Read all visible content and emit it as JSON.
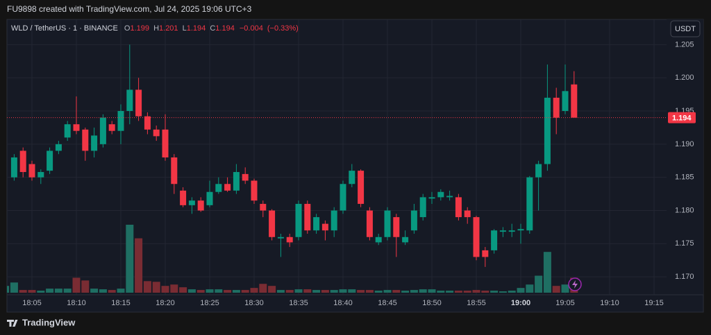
{
  "header": {
    "credit": "FU9898 created with TradingView.com, Jul 24, 2025 19:06 UTC+3",
    "symbol": "WLD / TetherUS · 1 · BINANCE",
    "ohlc_labels": [
      "O",
      "H",
      "L",
      "C"
    ],
    "ohlc_values": [
      1.199,
      1.201,
      1.194,
      1.194
    ],
    "change": -0.004,
    "change_label": "−0.004",
    "change_pct": -0.33,
    "change_pct_label": "(−0.33%)",
    "currency": "USDT"
  },
  "footer": {
    "brand": "TradingView"
  },
  "chart_data": {
    "type": "candlestick",
    "categories": [
      null,
      null,
      null,
      "18:05",
      null,
      null,
      null,
      null,
      "18:10",
      null,
      null,
      null,
      null,
      "18:15",
      null,
      null,
      null,
      null,
      "18:20",
      null,
      null,
      null,
      null,
      "18:25",
      null,
      null,
      null,
      null,
      "18:30",
      null,
      null,
      null,
      null,
      "18:35",
      null,
      null,
      null,
      null,
      "18:40",
      null,
      null,
      null,
      null,
      "18:45",
      null,
      null,
      null,
      null,
      "18:50",
      null,
      null,
      null,
      null,
      "18:55",
      null,
      null,
      null,
      null,
      "19:00",
      null,
      null,
      null,
      null,
      "19:05",
      null,
      null,
      null,
      null,
      "19:10",
      null,
      null,
      null,
      null,
      "19:15"
    ],
    "bold_category": "19:00",
    "open": [
      1.1845,
      1.185,
      1.189,
      1.187,
      1.185,
      1.186,
      1.189,
      1.191,
      1.193,
      1.1922,
      1.189,
      1.19,
      1.193,
      1.192,
      1.195,
      1.1982,
      1.1942,
      1.1922,
      1.1922,
      1.188,
      1.183,
      1.1808,
      1.1815,
      1.1808,
      1.1828,
      1.184,
      1.183,
      1.1855,
      1.1845,
      1.181,
      1.18,
      1.1758,
      1.176,
      1.176,
      1.181,
      1.177,
      1.178,
      1.177,
      1.18,
      1.184,
      1.186,
      1.18,
      1.1752,
      1.176,
      1.179,
      1.1752,
      1.177,
      1.179,
      1.1818,
      1.182,
      1.182,
      1.182,
      1.18,
      1.179,
      1.174,
      1.174,
      1.1768,
      1.1768,
      1.177,
      1.177,
      1.185,
      1.187,
      1.197,
      1.195,
      1.199,
      null,
      null,
      null,
      null,
      null,
      null,
      null,
      null,
      null
    ],
    "high": [
      1.1865,
      1.1885,
      1.1895,
      1.1875,
      1.1862,
      1.1895,
      1.1905,
      1.1935,
      1.1972,
      1.1925,
      1.1925,
      1.1945,
      1.1935,
      1.196,
      1.205,
      1.2,
      1.1948,
      1.1928,
      1.1945,
      1.1885,
      1.1835,
      1.182,
      1.182,
      1.1845,
      1.185,
      1.185,
      1.187,
      1.1865,
      1.1848,
      1.1815,
      1.1802,
      1.1765,
      1.1765,
      1.1815,
      1.1815,
      1.1795,
      1.1785,
      1.1805,
      1.1845,
      1.187,
      1.1862,
      1.1805,
      1.1765,
      1.1805,
      1.1795,
      1.177,
      1.181,
      1.1825,
      1.1828,
      1.1832,
      1.183,
      1.1825,
      1.1805,
      1.1792,
      1.1745,
      1.1772,
      1.1775,
      1.178,
      1.178,
      1.1852,
      1.1875,
      1.202,
      1.1985,
      1.202,
      1.201,
      null,
      null,
      null,
      null,
      null,
      null,
      null,
      null,
      null
    ],
    "low": [
      1.184,
      1.1845,
      1.185,
      1.1845,
      1.184,
      1.1855,
      1.1885,
      1.1905,
      1.1915,
      1.1875,
      1.188,
      1.1895,
      1.1915,
      1.19,
      1.193,
      1.1935,
      1.1915,
      1.1905,
      1.1875,
      1.1825,
      1.1805,
      1.1795,
      1.1798,
      1.1805,
      1.1825,
      1.1828,
      1.1825,
      1.184,
      1.181,
      1.179,
      1.1755,
      1.173,
      1.1745,
      1.1755,
      1.1765,
      1.1765,
      1.1755,
      1.176,
      1.1795,
      1.1835,
      1.1805,
      1.1755,
      1.1748,
      1.1755,
      1.173,
      1.1748,
      1.1765,
      1.1785,
      1.181,
      1.1815,
      1.1815,
      1.1785,
      1.178,
      1.1725,
      1.1715,
      1.1735,
      1.176,
      1.176,
      1.175,
      1.1765,
      1.18,
      1.186,
      1.1915,
      1.1945,
      1.194,
      null,
      null,
      null,
      null,
      null,
      null,
      null,
      null,
      null
    ],
    "close": [
      1.186,
      1.188,
      1.1858,
      1.185,
      1.1858,
      1.189,
      1.19,
      1.193,
      1.192,
      1.189,
      1.1913,
      1.194,
      1.192,
      1.195,
      1.1982,
      1.1942,
      1.1922,
      1.1912,
      1.188,
      1.184,
      1.1808,
      1.1815,
      1.18,
      1.1828,
      1.184,
      1.183,
      1.1858,
      1.1845,
      1.1815,
      1.18,
      1.176,
      1.176,
      1.1752,
      1.181,
      1.177,
      1.179,
      1.177,
      1.18,
      1.184,
      1.186,
      1.181,
      1.176,
      1.176,
      1.18,
      1.176,
      1.176,
      1.18,
      1.182,
      1.182,
      1.1828,
      1.1822,
      1.179,
      1.179,
      1.173,
      1.173,
      1.177,
      1.177,
      1.177,
      1.1772,
      1.185,
      1.187,
      1.197,
      1.194,
      1.198,
      1.194,
      null,
      null,
      null,
      null,
      null,
      null,
      null,
      null,
      null
    ],
    "volume": [
      10,
      15,
      4,
      4,
      3,
      6,
      6,
      6,
      22,
      18,
      6,
      5,
      4,
      6,
      100,
      80,
      17,
      16,
      10,
      12,
      8,
      5,
      4,
      5,
      5,
      4,
      4,
      4,
      7,
      13,
      10,
      4,
      4,
      5,
      5,
      4,
      4,
      4,
      5,
      5,
      4,
      4,
      3,
      4,
      4,
      3,
      4,
      5,
      5,
      3,
      3,
      3,
      3,
      4,
      3,
      3,
      2,
      3,
      7,
      12,
      25,
      60,
      10,
      12,
      22,
      null,
      null,
      null,
      null,
      null,
      null,
      null,
      null,
      null
    ],
    "up_color": "#089981",
    "down_color": "#f23645",
    "volume_up_color": "#1f6f63",
    "volume_down_color": "#7a2c33",
    "last_price": 1.194,
    "ylim": [
      1.1673,
      1.2088
    ],
    "yticks": [
      {
        "value": 1.17,
        "label": "1.170"
      },
      1.175,
      {
        "value": 1.18,
        "label": "1.180"
      },
      1.185,
      {
        "value": 1.19,
        "label": "1.190"
      },
      1.195,
      {
        "value": 1.2,
        "label": "1.200"
      },
      1.205
    ],
    "grid": true
  }
}
